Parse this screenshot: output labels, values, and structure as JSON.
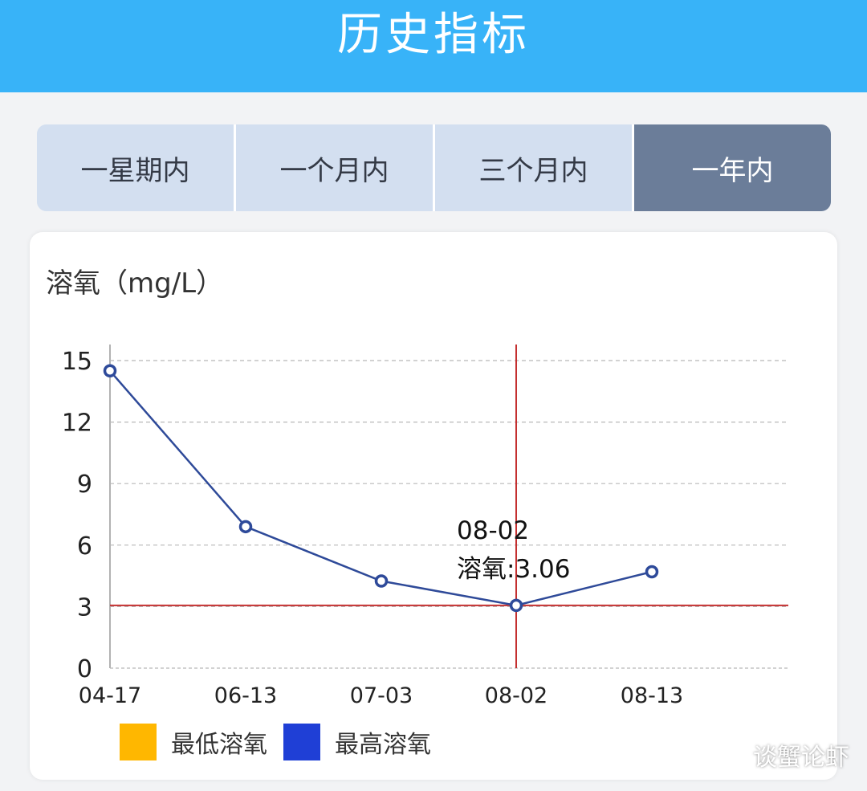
{
  "header": {
    "title": "历史指标"
  },
  "tabs": [
    {
      "label": "一星期内",
      "active": false
    },
    {
      "label": "一个月内",
      "active": false
    },
    {
      "label": "三个月内",
      "active": false
    },
    {
      "label": "一年内",
      "active": true
    }
  ],
  "card": {
    "title": "溶氧（mg/L）"
  },
  "chart_data": {
    "type": "line",
    "title": "溶氧（mg/L）",
    "categories": [
      "04-17",
      "06-13",
      "07-03",
      "08-02",
      "08-13"
    ],
    "series": [
      {
        "name": "最低溶氧",
        "color": "#ffb700",
        "values": [
          14.5,
          6.9,
          4.25,
          3.06,
          4.7
        ]
      },
      {
        "name": "最高溶氧",
        "color": "#1f3fd6",
        "values": [
          14.5,
          6.9,
          4.25,
          3.06,
          4.7
        ]
      }
    ],
    "line_color": "#2e4a9a",
    "ylim": [
      0,
      15
    ],
    "yticks": [
      "0",
      "3",
      "6",
      "9",
      "12",
      "15"
    ],
    "grid": true,
    "legend_position": "bottom-left",
    "crosshair": {
      "category": "08-02",
      "value": 3.06,
      "color": "#c43030"
    },
    "tooltip": {
      "date": "08-02",
      "text": "溶氧:3.06"
    }
  },
  "watermark": {
    "text": "谈蟹论虾",
    "icon": "wechat-icon"
  }
}
